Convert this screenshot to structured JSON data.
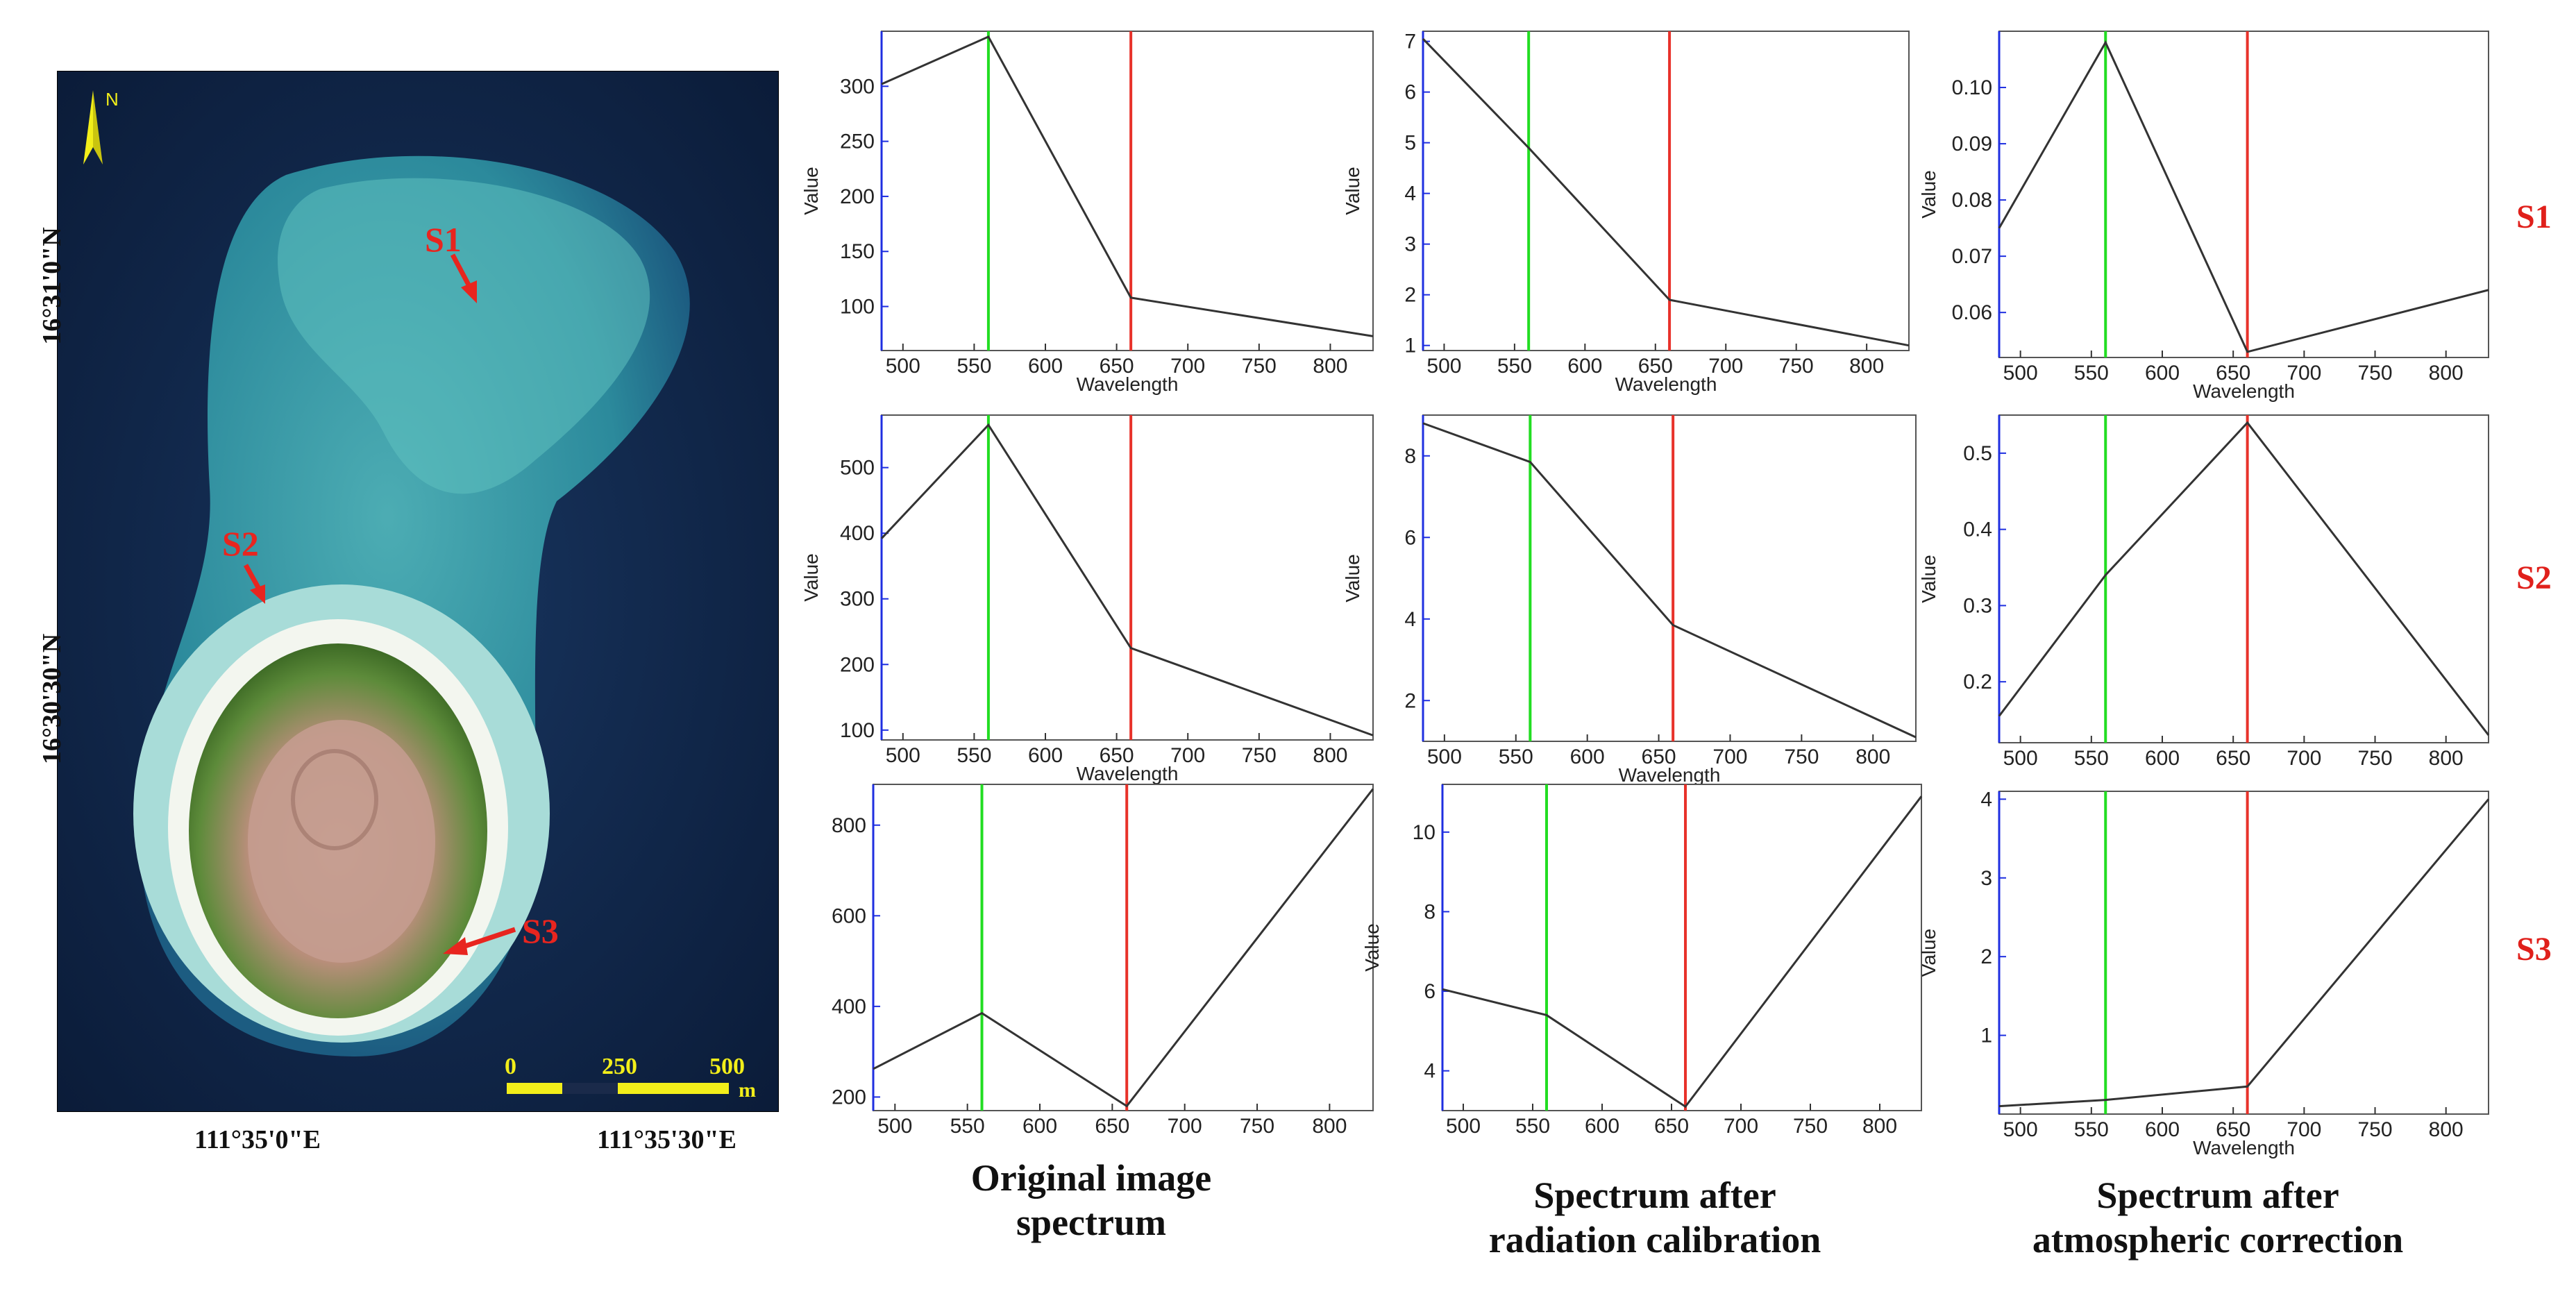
{
  "map": {
    "north_label": "N",
    "site_labels": [
      "S1",
      "S2",
      "S3"
    ],
    "lat_labels": [
      "16°31'0\"N",
      "16°30'30\"N"
    ],
    "lon_labels": [
      "111°35'0\"E",
      "111°35'30\"E"
    ],
    "scale_ticks": [
      "0",
      "250",
      "500"
    ],
    "scale_unit": "m",
    "colors": {
      "annotation": "#e8251f",
      "scale_bar": "#f2ee1a",
      "north_arrow": "#f2ee1a"
    }
  },
  "row_labels": [
    "S1",
    "S2",
    "S3"
  ],
  "column_captions": [
    {
      "line1": "Original image",
      "line2": "spectrum"
    },
    {
      "line1": "Spectrum after",
      "line2": "radiation calibration"
    },
    {
      "line1": "Spectrum after",
      "line2": "atmospheric correction"
    }
  ],
  "style": {
    "line_color": "#333333",
    "green_marker": "#22dd22",
    "red_marker": "#e8322a",
    "axis_color": "#1f2fe0"
  },
  "chart_data": [
    {
      "type": "line",
      "site": "S1",
      "column": "Original image spectrum",
      "xlabel": "Wavelength",
      "ylabel": "Value",
      "x": [
        485,
        560,
        660,
        830
      ],
      "y": [
        302,
        345,
        108,
        73
      ],
      "xlim": [
        485,
        830
      ],
      "ylim": [
        60,
        350
      ],
      "yticks": [
        100,
        150,
        200,
        250,
        300
      ],
      "xticks": [
        500,
        550,
        600,
        650,
        700,
        750,
        800
      ],
      "green_line_x": 560,
      "red_line_x": 660
    },
    {
      "type": "line",
      "site": "S1",
      "column": "Spectrum after radiation calibration",
      "xlabel": "Wavelength",
      "ylabel": "Value",
      "x": [
        485,
        560,
        660,
        830
      ],
      "y": [
        7.05,
        4.9,
        1.9,
        1.0
      ],
      "xlim": [
        485,
        830
      ],
      "ylim": [
        0.9,
        7.2
      ],
      "yticks": [
        1,
        2,
        3,
        4,
        5,
        6,
        7
      ],
      "xticks": [
        500,
        550,
        600,
        650,
        700,
        750,
        800
      ],
      "green_line_x": 560,
      "red_line_x": 660
    },
    {
      "type": "line",
      "site": "S1",
      "column": "Spectrum after atmospheric correction",
      "xlabel": "Wavelength",
      "ylabel": "Value",
      "x": [
        485,
        560,
        660,
        830
      ],
      "y": [
        0.075,
        0.108,
        0.053,
        0.064
      ],
      "xlim": [
        485,
        830
      ],
      "ylim": [
        0.052,
        0.11
      ],
      "yticks": [
        0.06,
        0.07,
        0.08,
        0.09,
        0.1
      ],
      "ytick_labels": [
        "0.06",
        "0.07",
        "0.08",
        "0.09",
        "0.10"
      ],
      "xticks": [
        500,
        550,
        600,
        650,
        700,
        750,
        800
      ],
      "green_line_x": 560,
      "red_line_x": 660
    },
    {
      "type": "line",
      "site": "S2",
      "column": "Original image spectrum",
      "xlabel": "Wavelength",
      "ylabel": "Value",
      "x": [
        485,
        560,
        660,
        830
      ],
      "y": [
        392,
        565,
        225,
        92
      ],
      "xlim": [
        485,
        830
      ],
      "ylim": [
        85,
        580
      ],
      "yticks": [
        100,
        200,
        300,
        400,
        500
      ],
      "xticks": [
        500,
        550,
        600,
        650,
        700,
        750,
        800
      ],
      "green_line_x": 560,
      "red_line_x": 660
    },
    {
      "type": "line",
      "site": "S2",
      "column": "Spectrum after radiation calibration",
      "xlabel": "Wavelength",
      "ylabel": "Value",
      "x": [
        485,
        560,
        660,
        830
      ],
      "y": [
        8.8,
        7.85,
        3.85,
        1.1
      ],
      "xlim": [
        485,
        830
      ],
      "ylim": [
        1.0,
        9.0
      ],
      "yticks": [
        2,
        4,
        6,
        8
      ],
      "xticks": [
        500,
        550,
        600,
        650,
        700,
        750,
        800
      ],
      "green_line_x": 560,
      "red_line_x": 660
    },
    {
      "type": "line",
      "site": "S2",
      "column": "Spectrum after atmospheric correction",
      "xlabel": "",
      "ylabel": "Value",
      "x": [
        485,
        560,
        660,
        830
      ],
      "y": [
        0.155,
        0.34,
        0.54,
        0.13
      ],
      "xlim": [
        485,
        830
      ],
      "ylim": [
        0.12,
        0.55
      ],
      "yticks": [
        0.2,
        0.3,
        0.4,
        0.5
      ],
      "xticks": [
        500,
        550,
        600,
        650,
        700,
        750,
        800
      ],
      "green_line_x": 560,
      "red_line_x": 660
    },
    {
      "type": "line",
      "site": "S3",
      "column": "Original image spectrum",
      "xlabel": "",
      "ylabel": "",
      "x": [
        485,
        560,
        660,
        830
      ],
      "y": [
        262,
        385,
        180,
        880
      ],
      "xlim": [
        485,
        830
      ],
      "ylim": [
        170,
        890
      ],
      "yticks": [
        200,
        400,
        600,
        800
      ],
      "xticks": [
        500,
        550,
        600,
        650,
        700,
        750,
        800
      ],
      "green_line_x": 560,
      "red_line_x": 660
    },
    {
      "type": "line",
      "site": "S3",
      "column": "Spectrum after radiation calibration",
      "xlabel": "",
      "ylabel": "Value",
      "x": [
        485,
        560,
        660,
        830
      ],
      "y": [
        6.05,
        5.4,
        3.1,
        10.9
      ],
      "xlim": [
        485,
        830
      ],
      "ylim": [
        3.0,
        11.2
      ],
      "yticks": [
        4,
        6,
        8,
        10
      ],
      "xticks": [
        500,
        550,
        600,
        650,
        700,
        750,
        800
      ],
      "green_line_x": 560,
      "red_line_x": 660
    },
    {
      "type": "line",
      "site": "S3",
      "column": "Spectrum after atmospheric correction",
      "xlabel": "Wavelength",
      "ylabel": "Value",
      "x": [
        485,
        560,
        660,
        830
      ],
      "y": [
        0.1,
        0.18,
        0.35,
        4.0
      ],
      "xlim": [
        485,
        830
      ],
      "ylim": [
        0.0,
        4.1
      ],
      "yticks": [
        1,
        2,
        3,
        4
      ],
      "xticks": [
        500,
        550,
        600,
        650,
        700,
        750,
        800
      ],
      "green_line_x": 560,
      "red_line_x": 660
    }
  ]
}
